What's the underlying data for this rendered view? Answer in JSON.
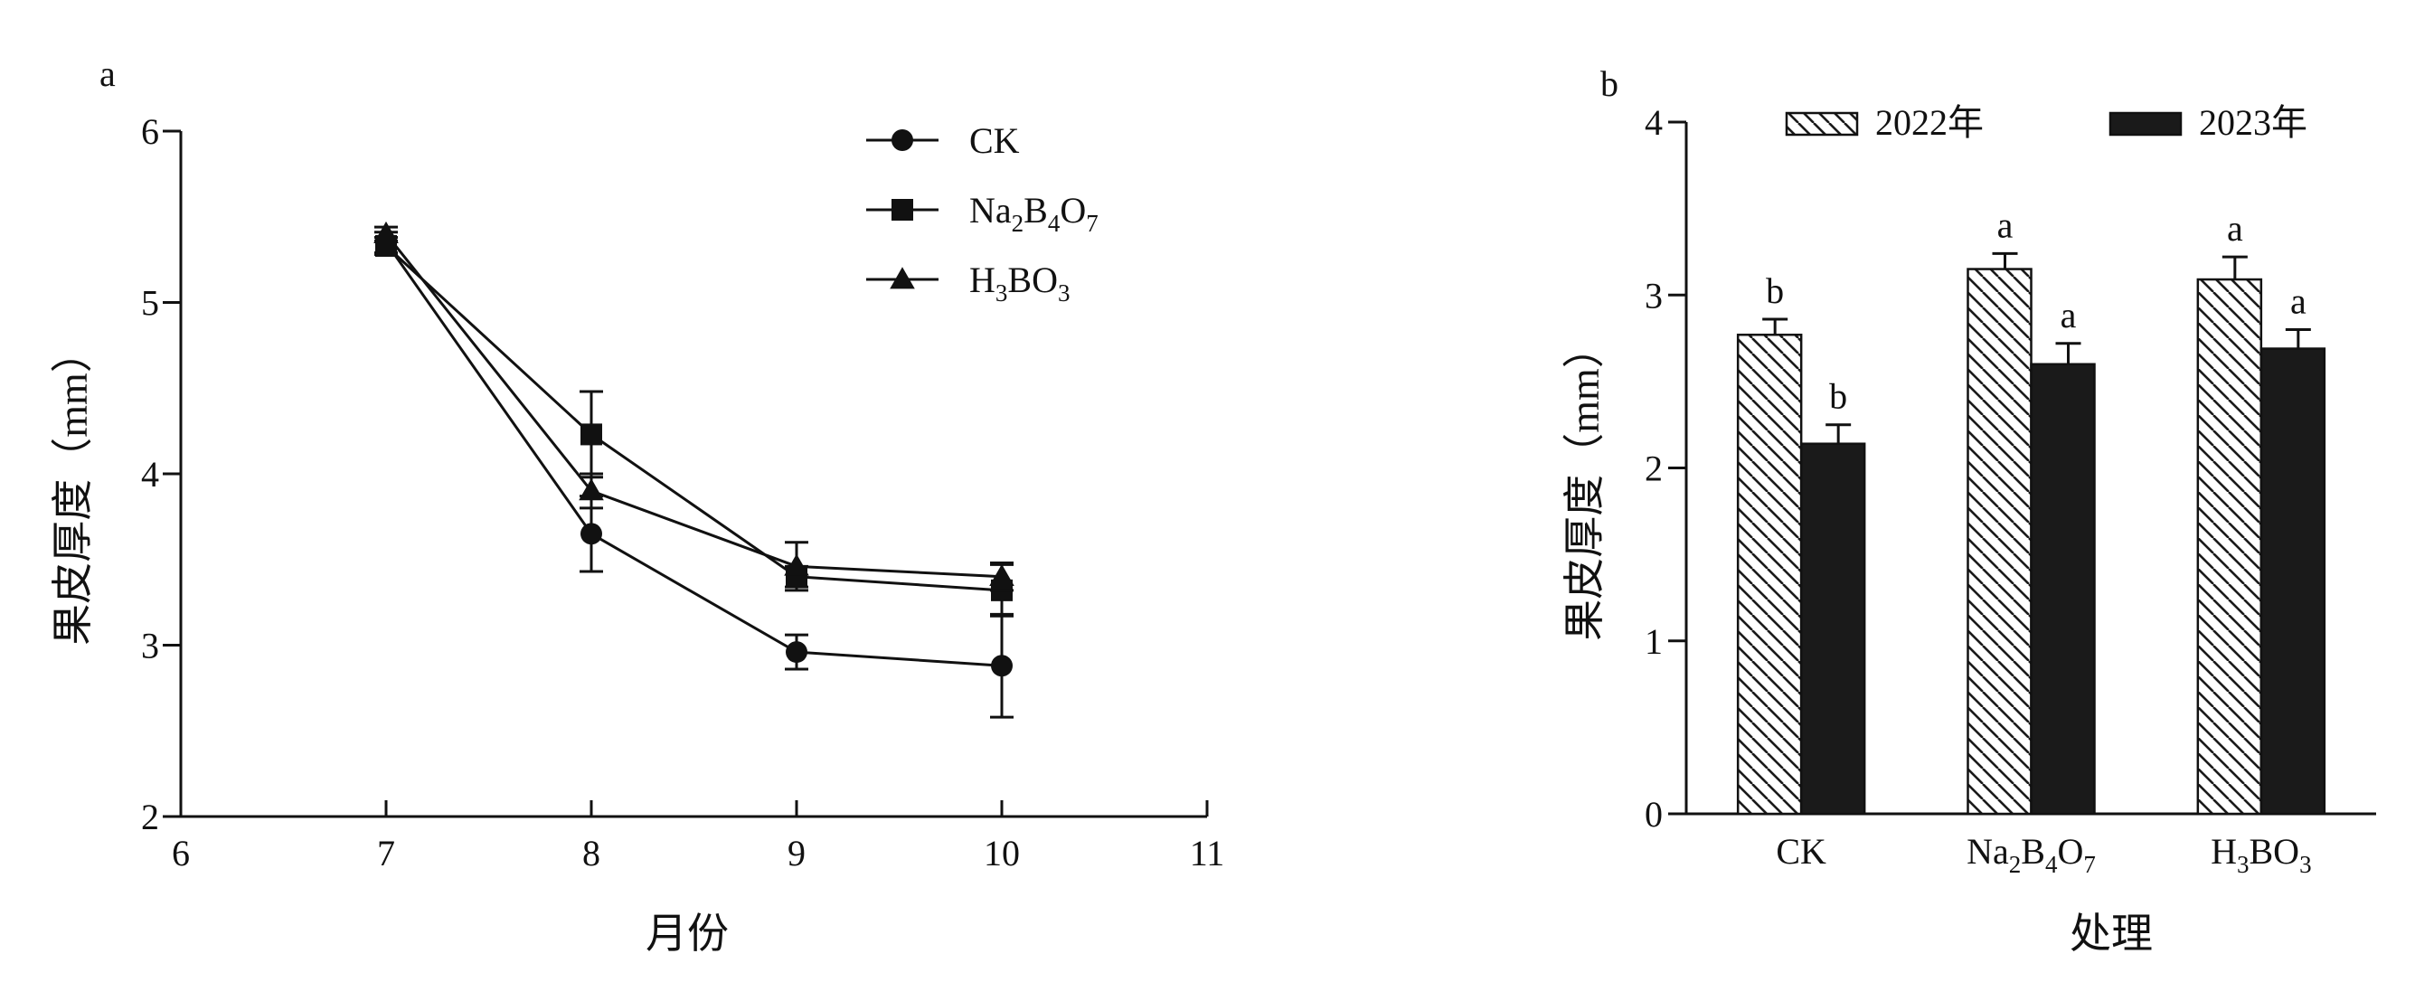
{
  "chart_data": [
    {
      "panel": "a",
      "type": "line",
      "xlabel": "月份",
      "ylabel": "果皮厚度（mm）",
      "xlim": [
        6,
        11
      ],
      "ylim": [
        2,
        6
      ],
      "xticks": [
        6,
        7,
        8,
        9,
        10,
        11
      ],
      "yticks": [
        2,
        3,
        4,
        5,
        6
      ],
      "grid": false,
      "legend_position": "top-right",
      "x": [
        7,
        8,
        9,
        10
      ],
      "series": [
        {
          "name": "CK",
          "base": "CK",
          "subs": [],
          "marker": "circle",
          "values": [
            5.35,
            3.65,
            2.96,
            2.88
          ],
          "errors": [
            0.06,
            0.22,
            0.1,
            0.3
          ]
        },
        {
          "name": "Na2B4O7",
          "base": "Na",
          "subs": [
            [
              "2",
              "B"
            ],
            [
              "4",
              "O"
            ],
            [
              "7",
              ""
            ]
          ],
          "marker": "square",
          "values": [
            5.33,
            4.23,
            3.4,
            3.32
          ],
          "errors": [
            0.05,
            0.25,
            0.06,
            0.15
          ]
        },
        {
          "name": "H3BO3",
          "base": "H",
          "subs": [
            [
              "3",
              "BO"
            ],
            [
              "3",
              ""
            ]
          ],
          "marker": "triangle",
          "values": [
            5.4,
            3.9,
            3.46,
            3.4
          ],
          "errors": [
            0.04,
            0.1,
            0.14,
            0.08
          ]
        }
      ]
    },
    {
      "panel": "b",
      "type": "bar",
      "xlabel": "处理",
      "ylabel": "果皮厚度（mm）",
      "ylim": [
        0,
        4
      ],
      "yticks": [
        0,
        1,
        2,
        3,
        4
      ],
      "grid": false,
      "legend_position": "top",
      "categories": [
        {
          "name": "CK",
          "base": "CK",
          "subs": []
        },
        {
          "name": "Na2B4O7",
          "base": "Na",
          "subs": [
            [
              "2",
              "B"
            ],
            [
              "4",
              "O"
            ],
            [
              "7",
              ""
            ]
          ]
        },
        {
          "name": "H3BO3",
          "base": "H",
          "subs": [
            [
              "3",
              "BO"
            ],
            [
              "3",
              ""
            ]
          ]
        }
      ],
      "series": [
        {
          "name": "2022年",
          "pattern": "hatch",
          "values": [
            2.77,
            3.15,
            3.09
          ],
          "errors": [
            0.09,
            0.09,
            0.13
          ],
          "labels": [
            "b",
            "a",
            "a"
          ]
        },
        {
          "name": "2023年",
          "pattern": "solid",
          "values": [
            2.14,
            2.6,
            2.69
          ],
          "errors": [
            0.11,
            0.12,
            0.11
          ],
          "labels": [
            "b",
            "a",
            "a"
          ]
        }
      ]
    }
  ]
}
